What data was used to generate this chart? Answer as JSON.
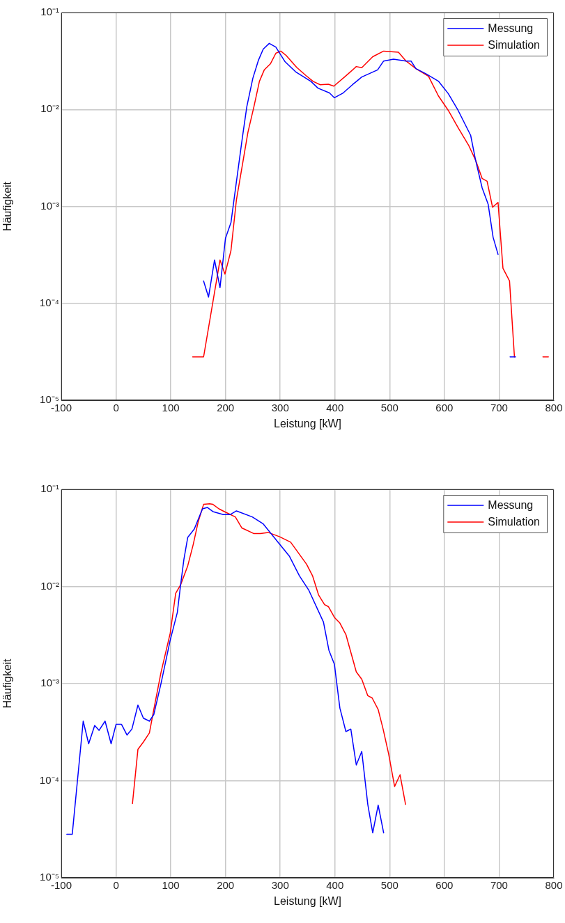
{
  "chart_data": [
    {
      "type": "line",
      "xlabel": "Leistung [kW]",
      "ylabel": "Häufigkeit",
      "log": "y",
      "grid": true,
      "legend": "top right",
      "marker": "none",
      "line_style": "solid",
      "xlim": [
        -100,
        800
      ],
      "xticks": [
        -100,
        0,
        100,
        200,
        300,
        400,
        500,
        600,
        700,
        800
      ],
      "ylim": [
        1e-05,
        0.1
      ],
      "yticks": [
        {
          "value": 1e-05,
          "label": "10⁻⁵"
        },
        {
          "value": 0.0001,
          "label": "10⁻⁴"
        },
        {
          "value": 0.001,
          "label": "10⁻³"
        },
        {
          "value": 0.01,
          "label": "10⁻²"
        },
        {
          "value": 0.1,
          "label": "10⁻¹"
        }
      ],
      "series": [
        {
          "name": "Messung",
          "color": "#0000ff",
          "x": [
            160,
            169,
            180,
            190,
            200,
            210,
            220,
            231,
            239,
            250,
            260,
            269,
            280,
            292,
            309,
            328,
            356,
            369,
            390,
            399,
            415,
            432,
            449,
            478,
            489,
            507,
            530,
            539,
            548,
            566,
            589,
            607,
            625,
            648,
            657,
            669,
            680,
            689,
            698,
            710,
            720,
            730
          ],
          "values": [
            0.00017,
            0.000116,
            0.00028,
            0.000145,
            0.00047,
            0.00068,
            0.0018,
            0.0052,
            0.0107,
            0.021,
            0.032,
            0.042,
            0.048,
            0.044,
            0.031,
            0.0245,
            0.0195,
            0.0166,
            0.0148,
            0.0132,
            0.0148,
            0.018,
            0.0216,
            0.0256,
            0.0316,
            0.033,
            0.0316,
            0.0316,
            0.0264,
            0.0234,
            0.0196,
            0.0146,
            0.0098,
            0.0054,
            0.003,
            0.00155,
            0.00105,
            0.00048,
            0.00032,
            null,
            2.8e-05,
            2.8e-05
          ]
        },
        {
          "name": "Simulation",
          "color": "#ff0000",
          "x": [
            140,
            160,
            190,
            199,
            210,
            220,
            231,
            241,
            252,
            262,
            271,
            282,
            292,
            301,
            311,
            330,
            347,
            360,
            373,
            388,
            398,
            419,
            439,
            449,
            469,
            489,
            516,
            530,
            548,
            571,
            589,
            607,
            625,
            644,
            657,
            669,
            678,
            688,
            698,
            707,
            719,
            728,
            755,
            780,
            790
          ],
          "values": [
            2.8e-05,
            2.8e-05,
            0.00028,
            0.0002,
            0.00035,
            0.00117,
            0.0027,
            0.0058,
            0.0107,
            0.0195,
            0.0257,
            0.0295,
            0.038,
            0.04,
            0.036,
            0.0272,
            0.0224,
            0.0195,
            0.018,
            0.0182,
            0.0174,
            0.022,
            0.0277,
            0.027,
            0.035,
            0.04,
            0.039,
            0.0316,
            0.0264,
            0.022,
            0.0138,
            0.0098,
            0.0065,
            0.0043,
            0.003,
            0.00194,
            0.00182,
            0.00098,
            0.0011,
            0.00023,
            0.00017,
            2.8e-05,
            null,
            2.8e-05,
            2.8e-05
          ]
        }
      ]
    },
    {
      "type": "line",
      "xlabel": "Leistung [kW]",
      "ylabel": "Häufigkeit",
      "log": "y",
      "grid": true,
      "legend": "top right",
      "marker": "none",
      "line_style": "solid",
      "xlim": [
        -100,
        800
      ],
      "xticks": [
        -100,
        0,
        100,
        200,
        300,
        400,
        500,
        600,
        700,
        800
      ],
      "ylim": [
        1e-05,
        0.1
      ],
      "yticks": [
        {
          "value": 1e-05,
          "label": "10⁻⁵"
        },
        {
          "value": 0.0001,
          "label": "10⁻⁴"
        },
        {
          "value": 0.001,
          "label": "10⁻³"
        },
        {
          "value": 0.01,
          "label": "10⁻²"
        },
        {
          "value": 0.1,
          "label": "10⁻¹"
        }
      ],
      "series": [
        {
          "name": "Messung",
          "color": "#0000ff",
          "x": [
            -90,
            -80,
            -60,
            -50,
            -39,
            -31,
            -20,
            -9,
            0,
            10,
            20,
            29,
            40,
            50,
            61,
            69,
            82,
            99,
            112,
            118,
            124,
            131,
            143,
            158,
            167,
            177,
            196,
            209,
            220,
            249,
            269,
            295,
            317,
            335,
            352,
            379,
            389,
            399,
            409,
            420,
            429,
            439,
            449,
            460,
            469,
            479,
            489
          ],
          "values": [
            2.8e-05,
            2.8e-05,
            0.00041,
            0.00024,
            0.00037,
            0.00033,
            0.00041,
            0.00024,
            0.00038,
            0.00038,
            0.000295,
            0.00034,
            0.0006,
            0.00044,
            0.00041,
            0.00048,
            0.00099,
            0.0028,
            0.0054,
            0.0104,
            0.019,
            0.032,
            0.039,
            0.063,
            0.065,
            0.059,
            0.055,
            0.055,
            0.06,
            0.052,
            0.044,
            0.029,
            0.0204,
            0.0129,
            0.0092,
            0.0043,
            0.0022,
            0.00158,
            0.00056,
            0.00032,
            0.00034,
            0.000145,
            0.0002,
            5.7e-05,
            2.9e-05,
            5.6e-05,
            2.9e-05
          ]
        },
        {
          "name": "Simulation",
          "color": "#ff0000",
          "x": [
            30,
            40,
            50,
            61,
            69,
            82,
            99,
            109,
            118,
            131,
            141,
            150,
            160,
            171,
            177,
            188,
            198,
            218,
            230,
            252,
            264,
            278,
            299,
            319,
            348,
            359,
            370,
            381,
            388,
            399,
            409,
            420,
            429,
            439,
            449,
            460,
            468,
            479,
            488,
            498,
            509,
            519,
            529
          ],
          "values": [
            5.8e-05,
            0.00021,
            0.00025,
            0.00031,
            0.00054,
            0.00129,
            0.0033,
            0.0085,
            0.0104,
            0.0163,
            0.027,
            0.046,
            0.07,
            0.071,
            0.07,
            0.063,
            0.059,
            0.052,
            0.04,
            0.035,
            0.035,
            0.036,
            0.0325,
            0.0286,
            0.017,
            0.0129,
            0.0082,
            0.0065,
            0.0062,
            0.0048,
            0.0042,
            0.0032,
            0.0021,
            0.00132,
            0.00111,
            0.00075,
            0.00071,
            0.00054,
            0.00034,
            0.00019,
            8.7e-05,
            0.000115,
            5.7e-05
          ]
        }
      ]
    }
  ]
}
